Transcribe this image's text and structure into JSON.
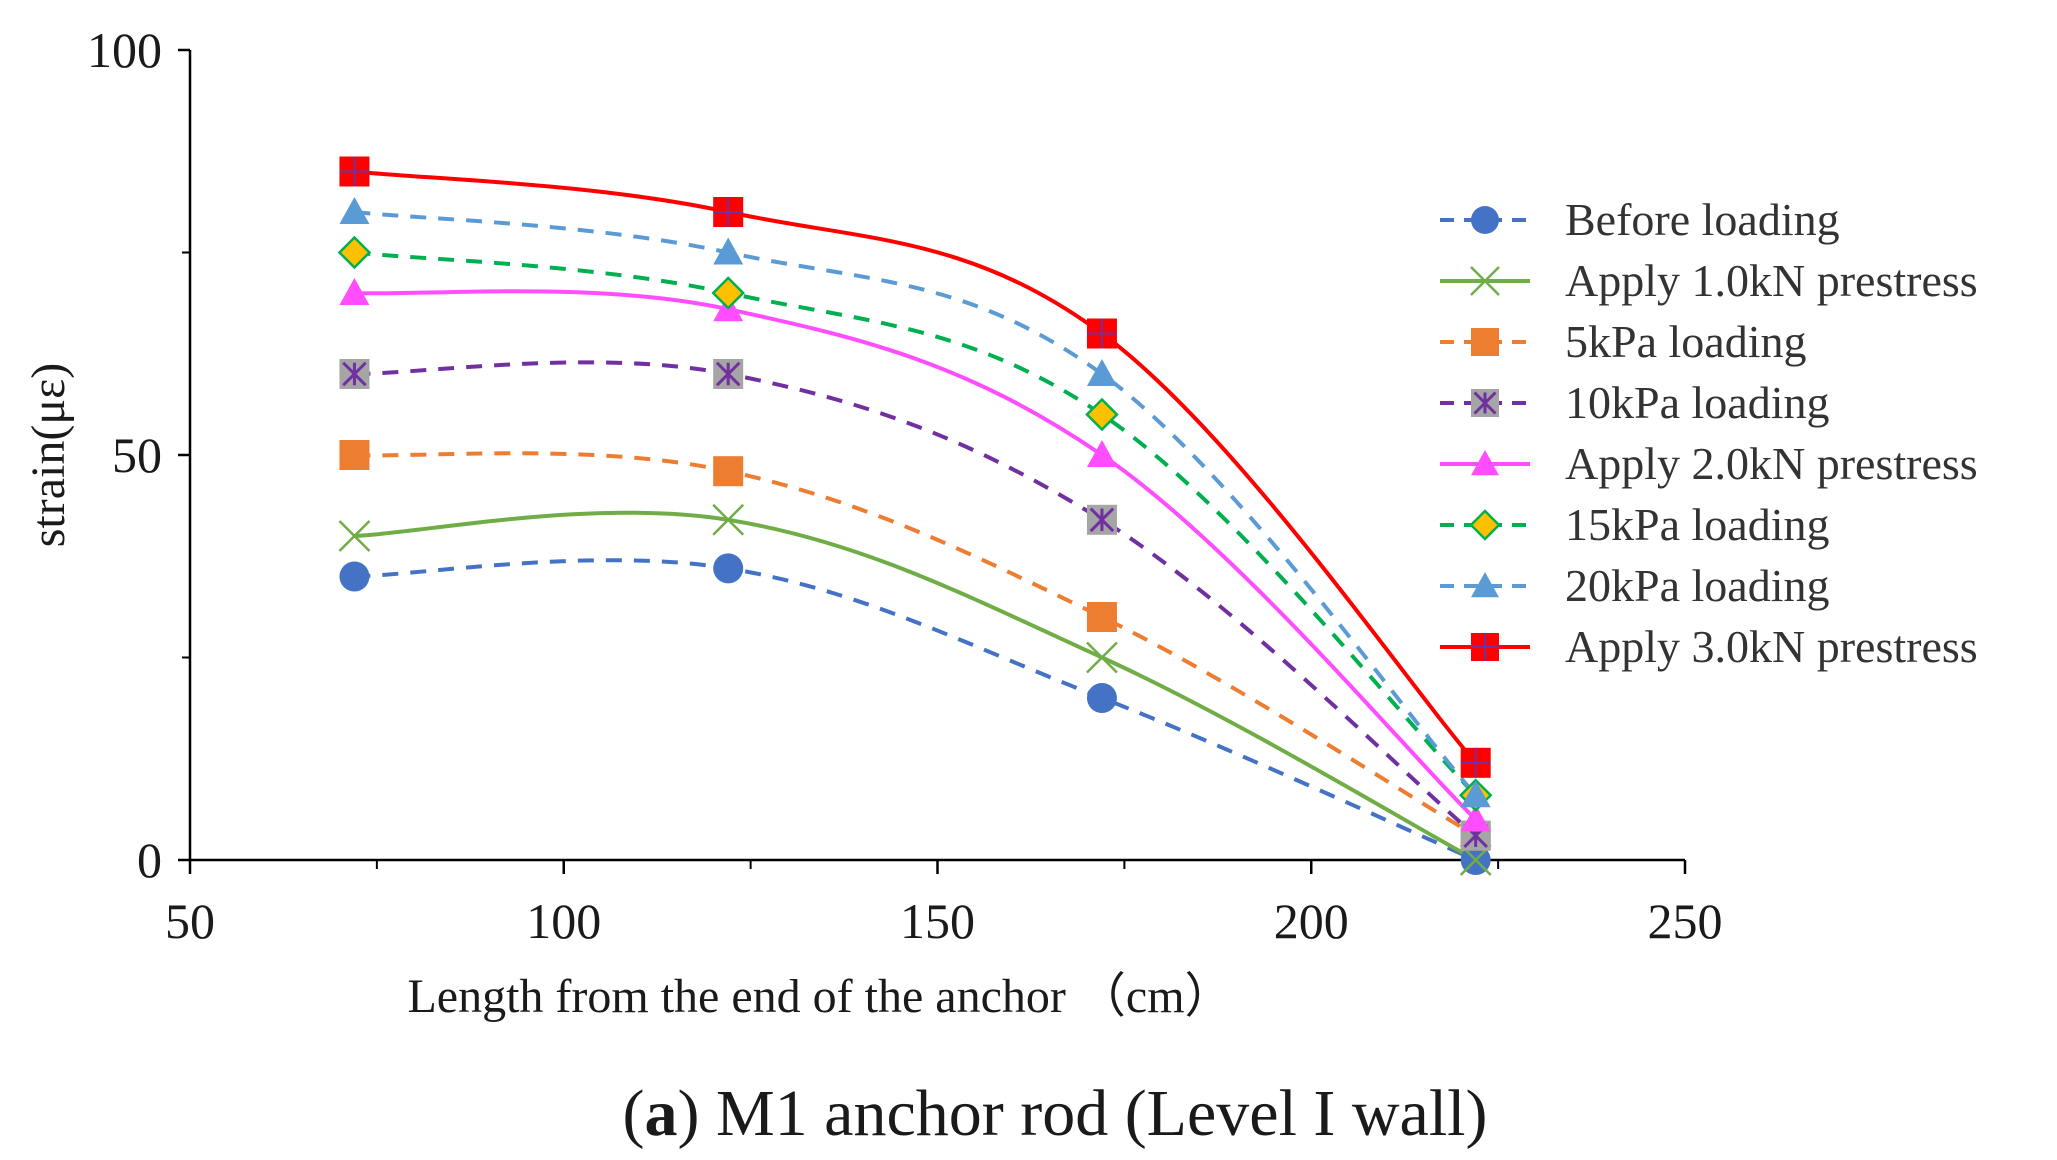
{
  "chart_data": {
    "type": "line",
    "title": "",
    "caption": {
      "prefix": "(",
      "letter": "a",
      "rest": ") M1 anchor rod (Level I wall)"
    },
    "xlabel": "Length  from the end of the anchor  （cm）",
    "ylabel": "strain(με)",
    "xlim": [
      50,
      250
    ],
    "ylim": [
      0,
      100
    ],
    "xticks": [
      50,
      100,
      150,
      200,
      250
    ],
    "yticks": [
      0,
      50,
      100
    ],
    "x": [
      72,
      122,
      172,
      222
    ],
    "legend_position": "right",
    "series": [
      {
        "name": "Before loading",
        "values": [
          35,
          36,
          20,
          0
        ],
        "color": "#4472C4",
        "marker": "circle",
        "dash": true
      },
      {
        "name": "Apply 1.0kN prestress",
        "values": [
          40,
          42,
          25,
          0
        ],
        "color": "#70AD47",
        "marker": "x",
        "dash": false
      },
      {
        "name": "5kPa loading",
        "values": [
          50,
          48,
          30,
          3
        ],
        "color": "#ED7D31",
        "marker": "square",
        "dash": true
      },
      {
        "name": "10kPa loading",
        "values": [
          60,
          60,
          42,
          3
        ],
        "color": "#7030A0",
        "marker": "asterisk-square",
        "dash": true
      },
      {
        "name": "Apply 2.0kN prestress",
        "values": [
          70,
          68,
          50,
          5
        ],
        "color": "#FF4DFF",
        "marker": "triangle",
        "dash": false
      },
      {
        "name": "15kPa loading",
        "values": [
          75,
          70,
          55,
          8
        ],
        "color": "#00B050",
        "marker": "diamond",
        "dash": true
      },
      {
        "name": "20kPa loading",
        "values": [
          80,
          75,
          60,
          8
        ],
        "color": "#5B9BD5",
        "marker": "triangle",
        "dash": true
      },
      {
        "name": "Apply 3.0kN prestress",
        "values": [
          85,
          80,
          65,
          12
        ],
        "color": "#FF0000",
        "marker": "cross-square",
        "dash": false
      }
    ]
  }
}
